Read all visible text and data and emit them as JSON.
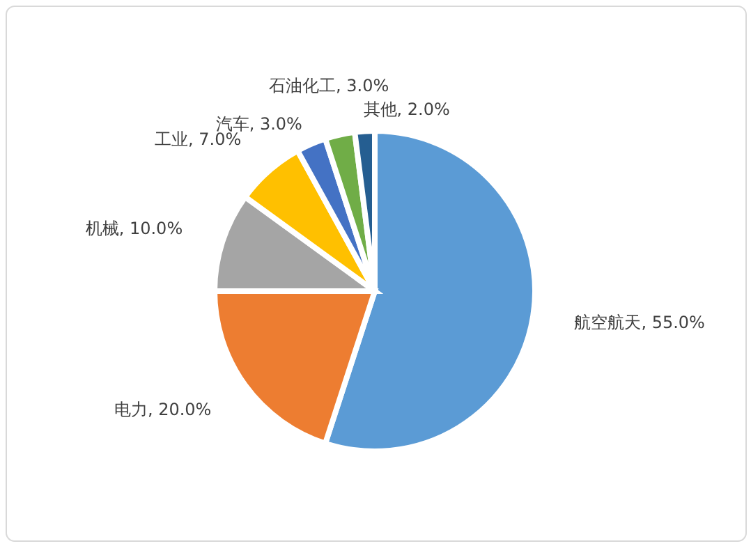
{
  "chart_data": {
    "type": "pie",
    "categories": [
      "航空航天",
      "电力",
      "机械",
      "工业",
      "汽车",
      "石油化工",
      "其他"
    ],
    "values": [
      55,
      20,
      10,
      7,
      3,
      3,
      2
    ],
    "value_labels": [
      "55.0%",
      "20.0%",
      "10.0%",
      "7.0%",
      "3.0%",
      "3.0%",
      "2.0%"
    ],
    "colors": [
      "#5b9bd5",
      "#ed7d31",
      "#a5a5a5",
      "#ffc000",
      "#4472c4",
      "#70ad47",
      "#255e91"
    ]
  }
}
